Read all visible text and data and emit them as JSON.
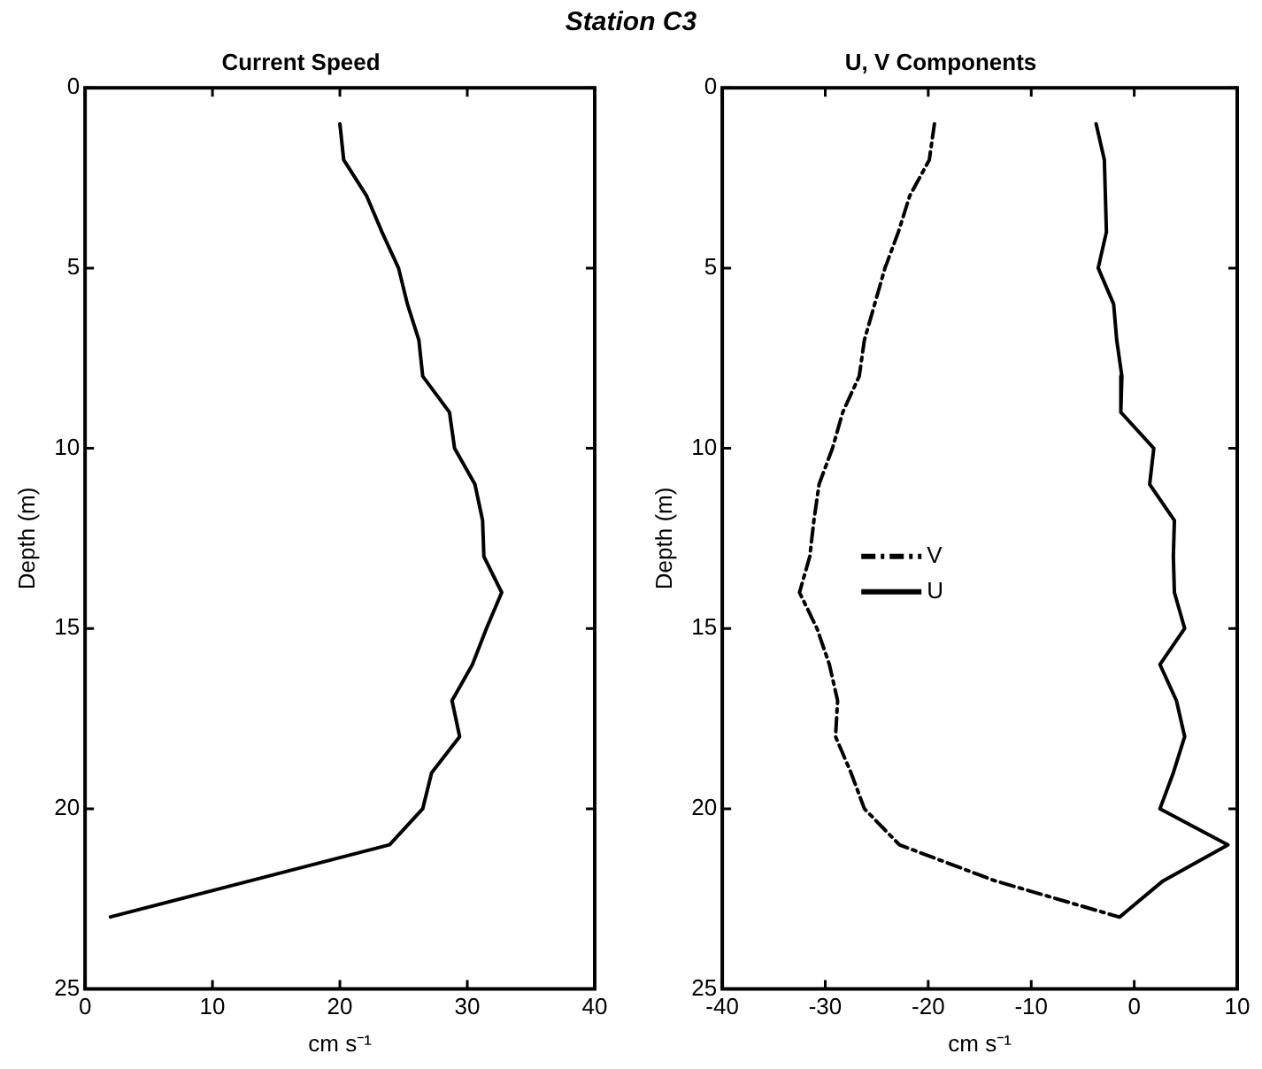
{
  "chart_data": [
    {
      "type": "line",
      "title": "Station C3",
      "subtitle": "Current Speed",
      "xlabel": "cm s⁻¹",
      "ylabel": "Depth (m)",
      "series": [
        {
          "color": "#000000",
          "line_style": "solid",
          "x": [
            20.0,
            20.3,
            22.1,
            23.3,
            24.6,
            25.3,
            26.2,
            26.5,
            28.6,
            29.0,
            30.6,
            31.2,
            31.3,
            32.7,
            31.5,
            30.4,
            28.8,
            29.4,
            27.2,
            26.5,
            23.9,
            2.0
          ],
          "values": [
            1,
            2,
            3,
            4,
            5,
            6,
            7,
            8,
            9,
            10,
            11,
            12,
            13,
            14,
            15,
            16,
            17,
            18,
            19,
            20,
            21,
            23
          ]
        }
      ],
      "xlim": [
        0,
        40
      ],
      "xticks": [
        0,
        10,
        20,
        30,
        40
      ],
      "ylim": [
        25,
        0
      ],
      "yticks": [
        0,
        5,
        10,
        15,
        20,
        25
      ],
      "grid": false,
      "legend": false,
      "marker": "none"
    },
    {
      "type": "line",
      "title": "U, V Components",
      "xlabel": "cm s⁻¹",
      "ylabel": "Depth (m)",
      "series": [
        {
          "name": "V",
          "color": "#000000",
          "line_style": "dashed",
          "x": [
            -19.4,
            -19.9,
            -21.8,
            -22.9,
            -24.2,
            -25.2,
            -26.2,
            -26.7,
            -28.3,
            -29.3,
            -30.6,
            -31.1,
            -31.5,
            -32.5,
            -30.8,
            -29.6,
            -28.8,
            -29.0,
            -27.5,
            -26.2,
            -22.8,
            -13.5,
            -1.5
          ],
          "values": [
            1,
            2,
            3,
            4,
            5,
            6,
            7,
            8,
            9,
            10,
            11,
            12,
            13,
            14,
            15,
            16,
            17,
            18,
            19,
            20,
            21,
            22,
            23
          ]
        },
        {
          "name": "U",
          "color": "#000000",
          "line_style": "solid",
          "x": [
            -3.7,
            -2.9,
            -2.8,
            -2.7,
            -3.5,
            -2.0,
            -1.7,
            -1.2,
            -1.3,
            1.9,
            1.5,
            3.9,
            3.8,
            3.9,
            4.9,
            2.5,
            4.1,
            4.9,
            3.8,
            2.5,
            9.1,
            2.8,
            -1.4
          ],
          "values": [
            1,
            2,
            3,
            4,
            5,
            6,
            7,
            8,
            9,
            10,
            11,
            12,
            13,
            14,
            15,
            16,
            17,
            18,
            19,
            20,
            21,
            22,
            23
          ]
        }
      ],
      "xlim": [
        -40,
        10
      ],
      "xticks": [
        -40,
        -30,
        -20,
        -10,
        0,
        10
      ],
      "ylim": [
        25,
        0
      ],
      "yticks": [
        0,
        5,
        10,
        15,
        20,
        25
      ],
      "grid": false,
      "legend": "left",
      "marker": "none"
    }
  ]
}
